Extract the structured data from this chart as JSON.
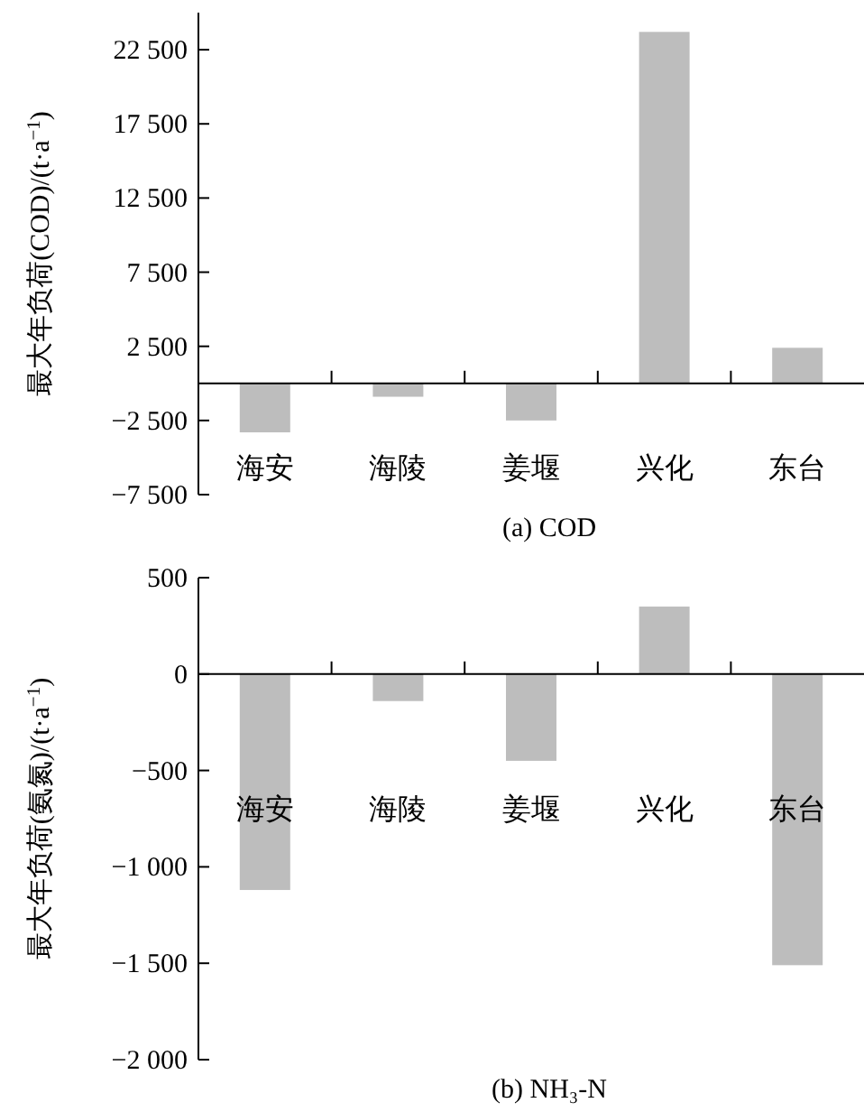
{
  "chart_data": [
    {
      "type": "bar",
      "xlabel": "(a) COD",
      "ylabel": "最大年负荷(COD)/(t·a$^{−1}$)",
      "categories": [
        "海安",
        "海陵",
        "姜堰",
        "兴化",
        "东台"
      ],
      "values": [
        -3300,
        -900,
        -2500,
        23700,
        2400
      ],
      "color": "#bdbdbd",
      "ylim": [
        -7500,
        25000
      ],
      "yticks": [
        {
          "value": -7500,
          "label": "−7 500"
        },
        {
          "value": -2500,
          "label": "−2 500"
        },
        {
          "value": 2500,
          "label": "2 500"
        },
        {
          "value": 7500,
          "label": "7 500"
        },
        {
          "value": 12500,
          "label": "12 500"
        },
        {
          "value": 17500,
          "label": "17 500"
        },
        {
          "value": 22500,
          "label": "22 500"
        }
      ]
    },
    {
      "type": "bar",
      "xlabel": "(b) NH₃-N",
      "ylabel": "最大年负荷(氨氮)/(t·a$^{−1}$)",
      "categories": [
        "海安",
        "海陵",
        "姜堰",
        "兴化",
        "东台"
      ],
      "values": [
        -1120,
        -140,
        -450,
        350,
        -1510
      ],
      "color": "#bdbdbd",
      "ylim": [
        -2000,
        500
      ],
      "yticks": [
        {
          "value": -2000,
          "label": "−2 000"
        },
        {
          "value": -1500,
          "label": "−1 500"
        },
        {
          "value": -1000,
          "label": "−1 000"
        },
        {
          "value": -500,
          "label": "−500"
        },
        {
          "value": 0,
          "label": "0"
        },
        {
          "value": 500,
          "label": "500"
        }
      ]
    }
  ]
}
